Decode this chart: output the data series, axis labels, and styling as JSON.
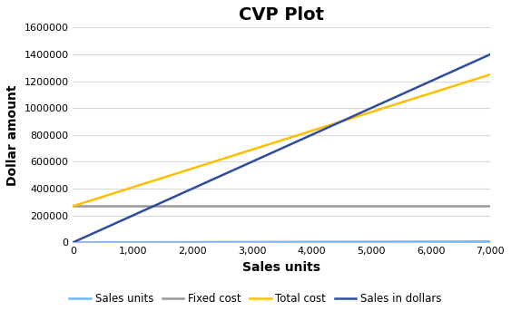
{
  "title": "CVP Plot",
  "xlabel": "Sales units",
  "ylabel": "Dollar amount",
  "xlim": [
    0,
    7000
  ],
  "ylim": [
    0,
    1600000
  ],
  "xticks": [
    0,
    1000,
    2000,
    3000,
    4000,
    5000,
    6000,
    7000
  ],
  "yticks": [
    0,
    200000,
    400000,
    600000,
    800000,
    1000000,
    1200000,
    1400000,
    1600000
  ],
  "lines": {
    "sales_units": {
      "x": [
        0,
        7000
      ],
      "y": [
        0,
        7000
      ],
      "color": "#70B8FF",
      "label": "Sales units",
      "linewidth": 1.8
    },
    "fixed_cost": {
      "x": [
        0,
        7000
      ],
      "y": [
        270000,
        270000
      ],
      "color": "#999999",
      "label": "Fixed cost",
      "linewidth": 1.8
    },
    "total_cost": {
      "x": [
        0,
        7000
      ],
      "y": [
        270000,
        1250000
      ],
      "color": "#FFC000",
      "label": "Total cost",
      "linewidth": 1.8
    },
    "sales_in_dollars": {
      "x": [
        0,
        7000
      ],
      "y": [
        0,
        1400000
      ],
      "color": "#2E4CA0",
      "label": "Sales in dollars",
      "linewidth": 1.8
    }
  },
  "legend_order": [
    "sales_units",
    "fixed_cost",
    "total_cost",
    "sales_in_dollars"
  ],
  "background_color": "#ffffff",
  "grid_color": "#d9d9d9",
  "title_fontsize": 14,
  "axis_label_fontsize": 10,
  "tick_fontsize": 8,
  "legend_fontsize": 8.5
}
